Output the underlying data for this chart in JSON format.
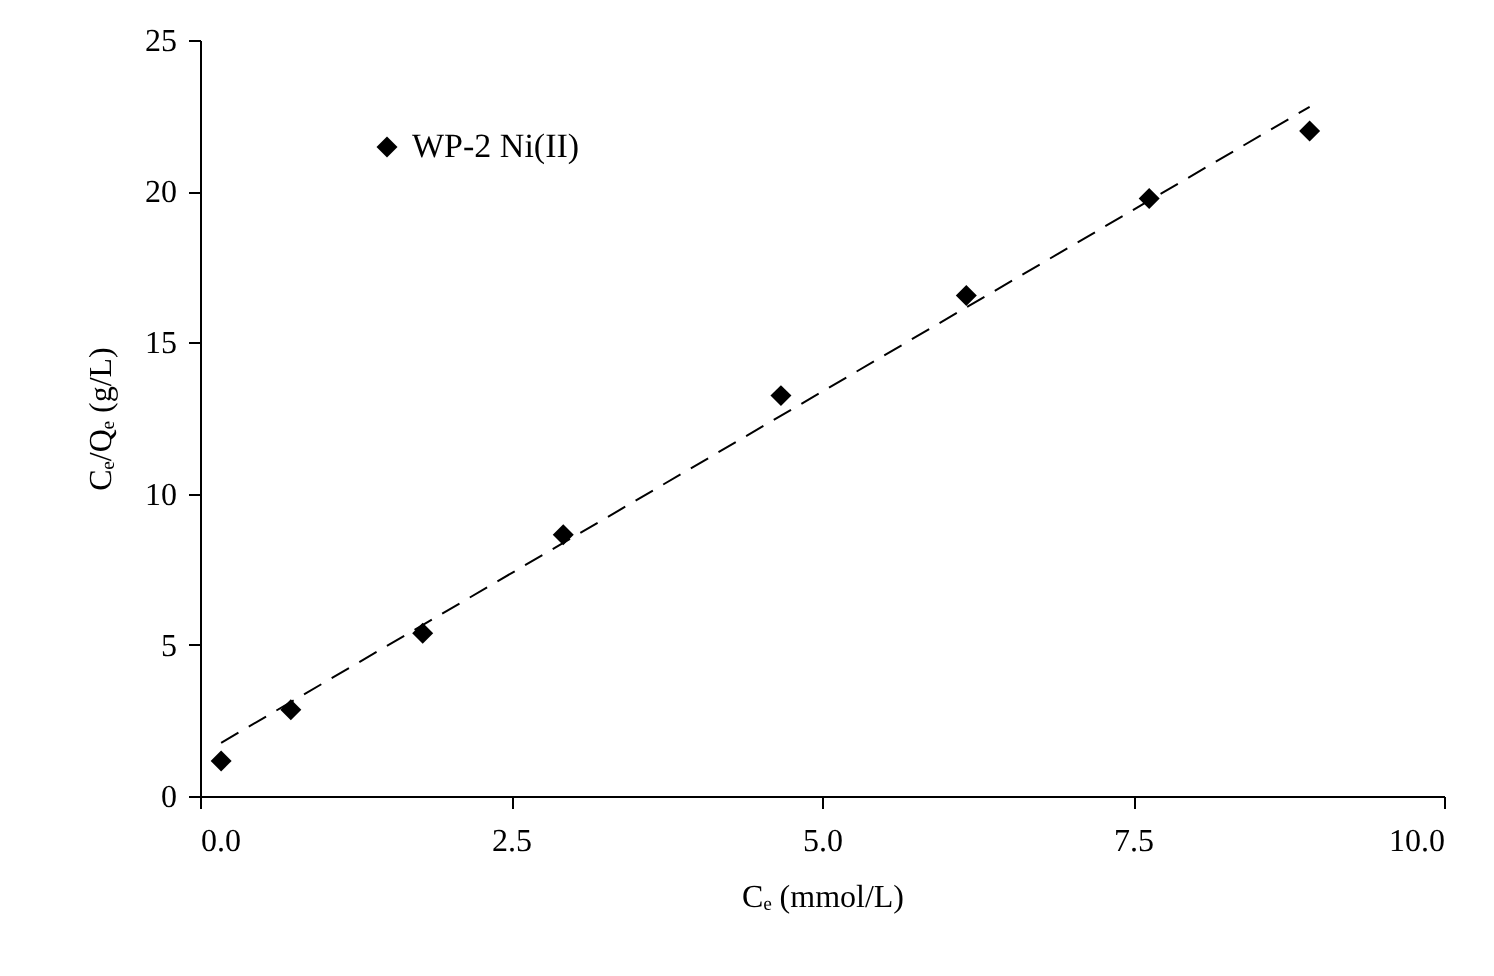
{
  "chart_data": {
    "type": "scatter",
    "xlabel": "Cₑ (mmol/L)",
    "ylabel": "Cₑ/Qₑ (g/L)",
    "x": [
      0.17,
      0.73,
      1.79,
      2.92,
      4.67,
      6.16,
      7.63,
      8.92
    ],
    "series": [
      {
        "name": "WP-2 Ni(II)",
        "color": "#000000",
        "values": [
          1.16,
          2.85,
          5.38,
          8.64,
          13.24,
          16.55,
          19.76,
          21.99
        ],
        "marker": "diamond"
      },
      {
        "type": "line",
        "color": "#000000",
        "x": [
          0.17,
          8.92
        ],
        "values": [
          1.76,
          22.79
        ],
        "line_style": "dashed",
        "marker": "none"
      }
    ],
    "xlim": [
      0,
      10
    ],
    "xticks": [
      {
        "value": 0,
        "label": "0.0"
      },
      {
        "value": 2.5,
        "label": "2.5"
      },
      {
        "value": 5,
        "label": "5.0"
      },
      {
        "value": 7.5,
        "label": "7.5"
      },
      {
        "value": 10,
        "label": "10.0"
      }
    ],
    "ylim": [
      0,
      25
    ],
    "yticks": [
      0,
      5,
      10,
      15,
      20,
      25
    ],
    "grid": false,
    "legend": "top left"
  }
}
